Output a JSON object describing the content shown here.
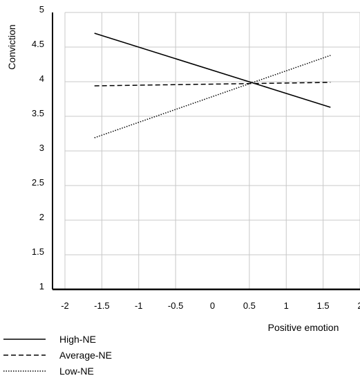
{
  "chart_data": {
    "type": "line",
    "title": "",
    "xlabel": "Positive emotion",
    "ylabel": "Conviction",
    "xlim": [
      -2,
      2
    ],
    "ylim": [
      1,
      5
    ],
    "x_ticks": [
      "-2",
      "-1.5",
      "-1",
      "-0.5",
      "0",
      "0.5",
      "1",
      "1.5",
      "2"
    ],
    "y_ticks": [
      "1",
      "1.5",
      "2",
      "2.5",
      "3",
      "3.5",
      "4",
      "4.5",
      "5"
    ],
    "grid": true,
    "legend_position": "bottom-left",
    "series": [
      {
        "name": "High-NE",
        "style": "solid",
        "color": "#000000",
        "x": [
          -1.6,
          1.6
        ],
        "y": [
          4.7,
          3.63
        ]
      },
      {
        "name": "Average-NE",
        "style": "dashed",
        "color": "#000000",
        "x": [
          -1.6,
          1.6
        ],
        "y": [
          3.94,
          3.99
        ]
      },
      {
        "name": "Low-NE",
        "style": "dotted",
        "color": "#000000",
        "x": [
          -1.6,
          1.6
        ],
        "y": [
          3.19,
          4.38
        ]
      }
    ]
  }
}
